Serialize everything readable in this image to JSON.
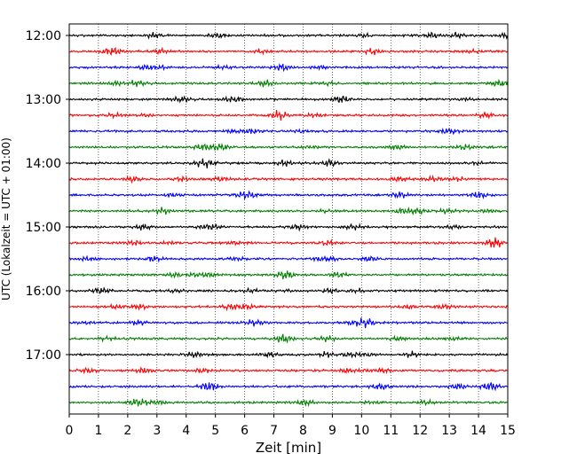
{
  "chart_data": {
    "type": "line",
    "title": "",
    "xlabel": "Zeit  [min]",
    "ylabel": "UTC (Lokalzeit = UTC + 01:00)",
    "xlim": [
      0,
      15
    ],
    "x_ticks": [
      0,
      1,
      2,
      3,
      4,
      5,
      6,
      7,
      8,
      9,
      10,
      11,
      12,
      13,
      14,
      15
    ],
    "x_tick_labels": [
      "0",
      "1",
      "2",
      "3",
      "4",
      "5",
      "6",
      "7",
      "8",
      "9",
      "10",
      "11",
      "12",
      "13",
      "14",
      "15"
    ],
    "y_tick_labels": [
      "12:00",
      "13:00",
      "14:00",
      "15:00",
      "16:00",
      "17:00"
    ],
    "trace_start_times": [
      "12:00",
      "12:15",
      "12:30",
      "12:45",
      "13:00",
      "13:15",
      "13:30",
      "13:45",
      "14:00",
      "14:15",
      "14:30",
      "14:45",
      "15:00",
      "15:15",
      "15:30",
      "15:45",
      "16:00",
      "16:15",
      "16:30",
      "16:45",
      "17:00",
      "17:15",
      "17:30",
      "17:45"
    ],
    "trace_colors": [
      "#000000",
      "#ff0000",
      "#0000ff",
      "#008000"
    ],
    "grid": {
      "x": true,
      "y": false,
      "style": "dotted"
    },
    "legend": "none"
  }
}
